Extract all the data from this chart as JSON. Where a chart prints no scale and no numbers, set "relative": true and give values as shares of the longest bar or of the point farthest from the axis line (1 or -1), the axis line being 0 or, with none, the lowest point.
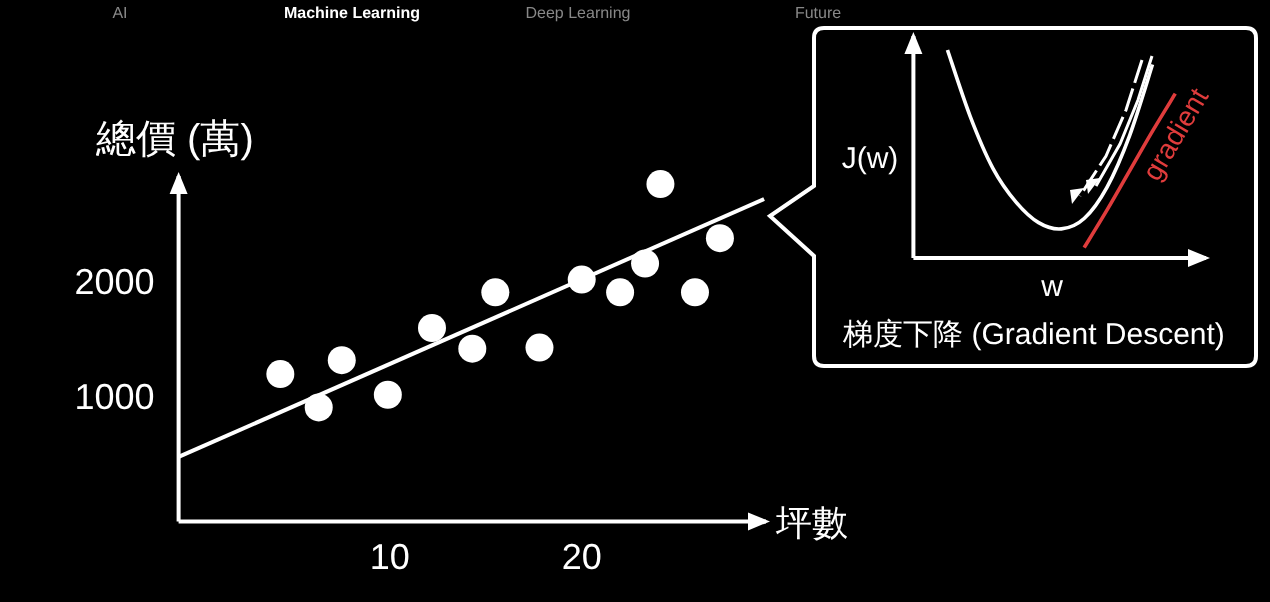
{
  "chart_data": [
    {
      "type": "scatter",
      "xlabel": "坪數",
      "ylabel": "總價 (萬)",
      "annotations": [
        "AI",
        "Machine Learning",
        "Deep Learning",
        "Future"
      ],
      "xlim": [
        -1,
        29.6
      ],
      "ylim": [
        -80,
        2920
      ],
      "xticks": [
        10,
        20
      ],
      "yticks": [
        1000,
        2000
      ],
      "series": [
        {
          "color": "#ffffff",
          "marker": "circle",
          "x": [
            4.3,
            6.3,
            7.5,
            9.9,
            12.2,
            14.3,
            15.5,
            17.8,
            20.0,
            22.0,
            23.3,
            24.1,
            25.9,
            27.2
          ],
          "values": [
            1200,
            910,
            1320,
            1020,
            1600,
            1420,
            1910,
            1430,
            2020,
            1910,
            2160,
            2850,
            1910,
            2380
          ]
        },
        {
          "type": "line",
          "color": "#ffffff",
          "x": [
            -1,
            29.5
          ],
          "values": [
            480,
            2720
          ]
        }
      ]
    },
    {
      "type": "line",
      "relative": true,
      "title": "梯度下降 (Gradient Descent)",
      "xlabel": "w",
      "ylabel": "J(w)",
      "categories": [
        null,
        null,
        null,
        null,
        null,
        null,
        null,
        null,
        null,
        null,
        null,
        null
      ],
      "series": [
        {
          "color": "#ffffff",
          "values": [
            null,
            1.0,
            0.68,
            0.43,
            0.27,
            0.17,
            0.14,
            0.19,
            0.34,
            0.59,
            0.93,
            null
          ]
        },
        {
          "name": "gradient",
          "color": "#e03c3c",
          "values": [
            null,
            null,
            null,
            null,
            null,
            null,
            null,
            0.05,
            0.23,
            0.42,
            0.61,
            0.79
          ]
        }
      ]
    }
  ]
}
